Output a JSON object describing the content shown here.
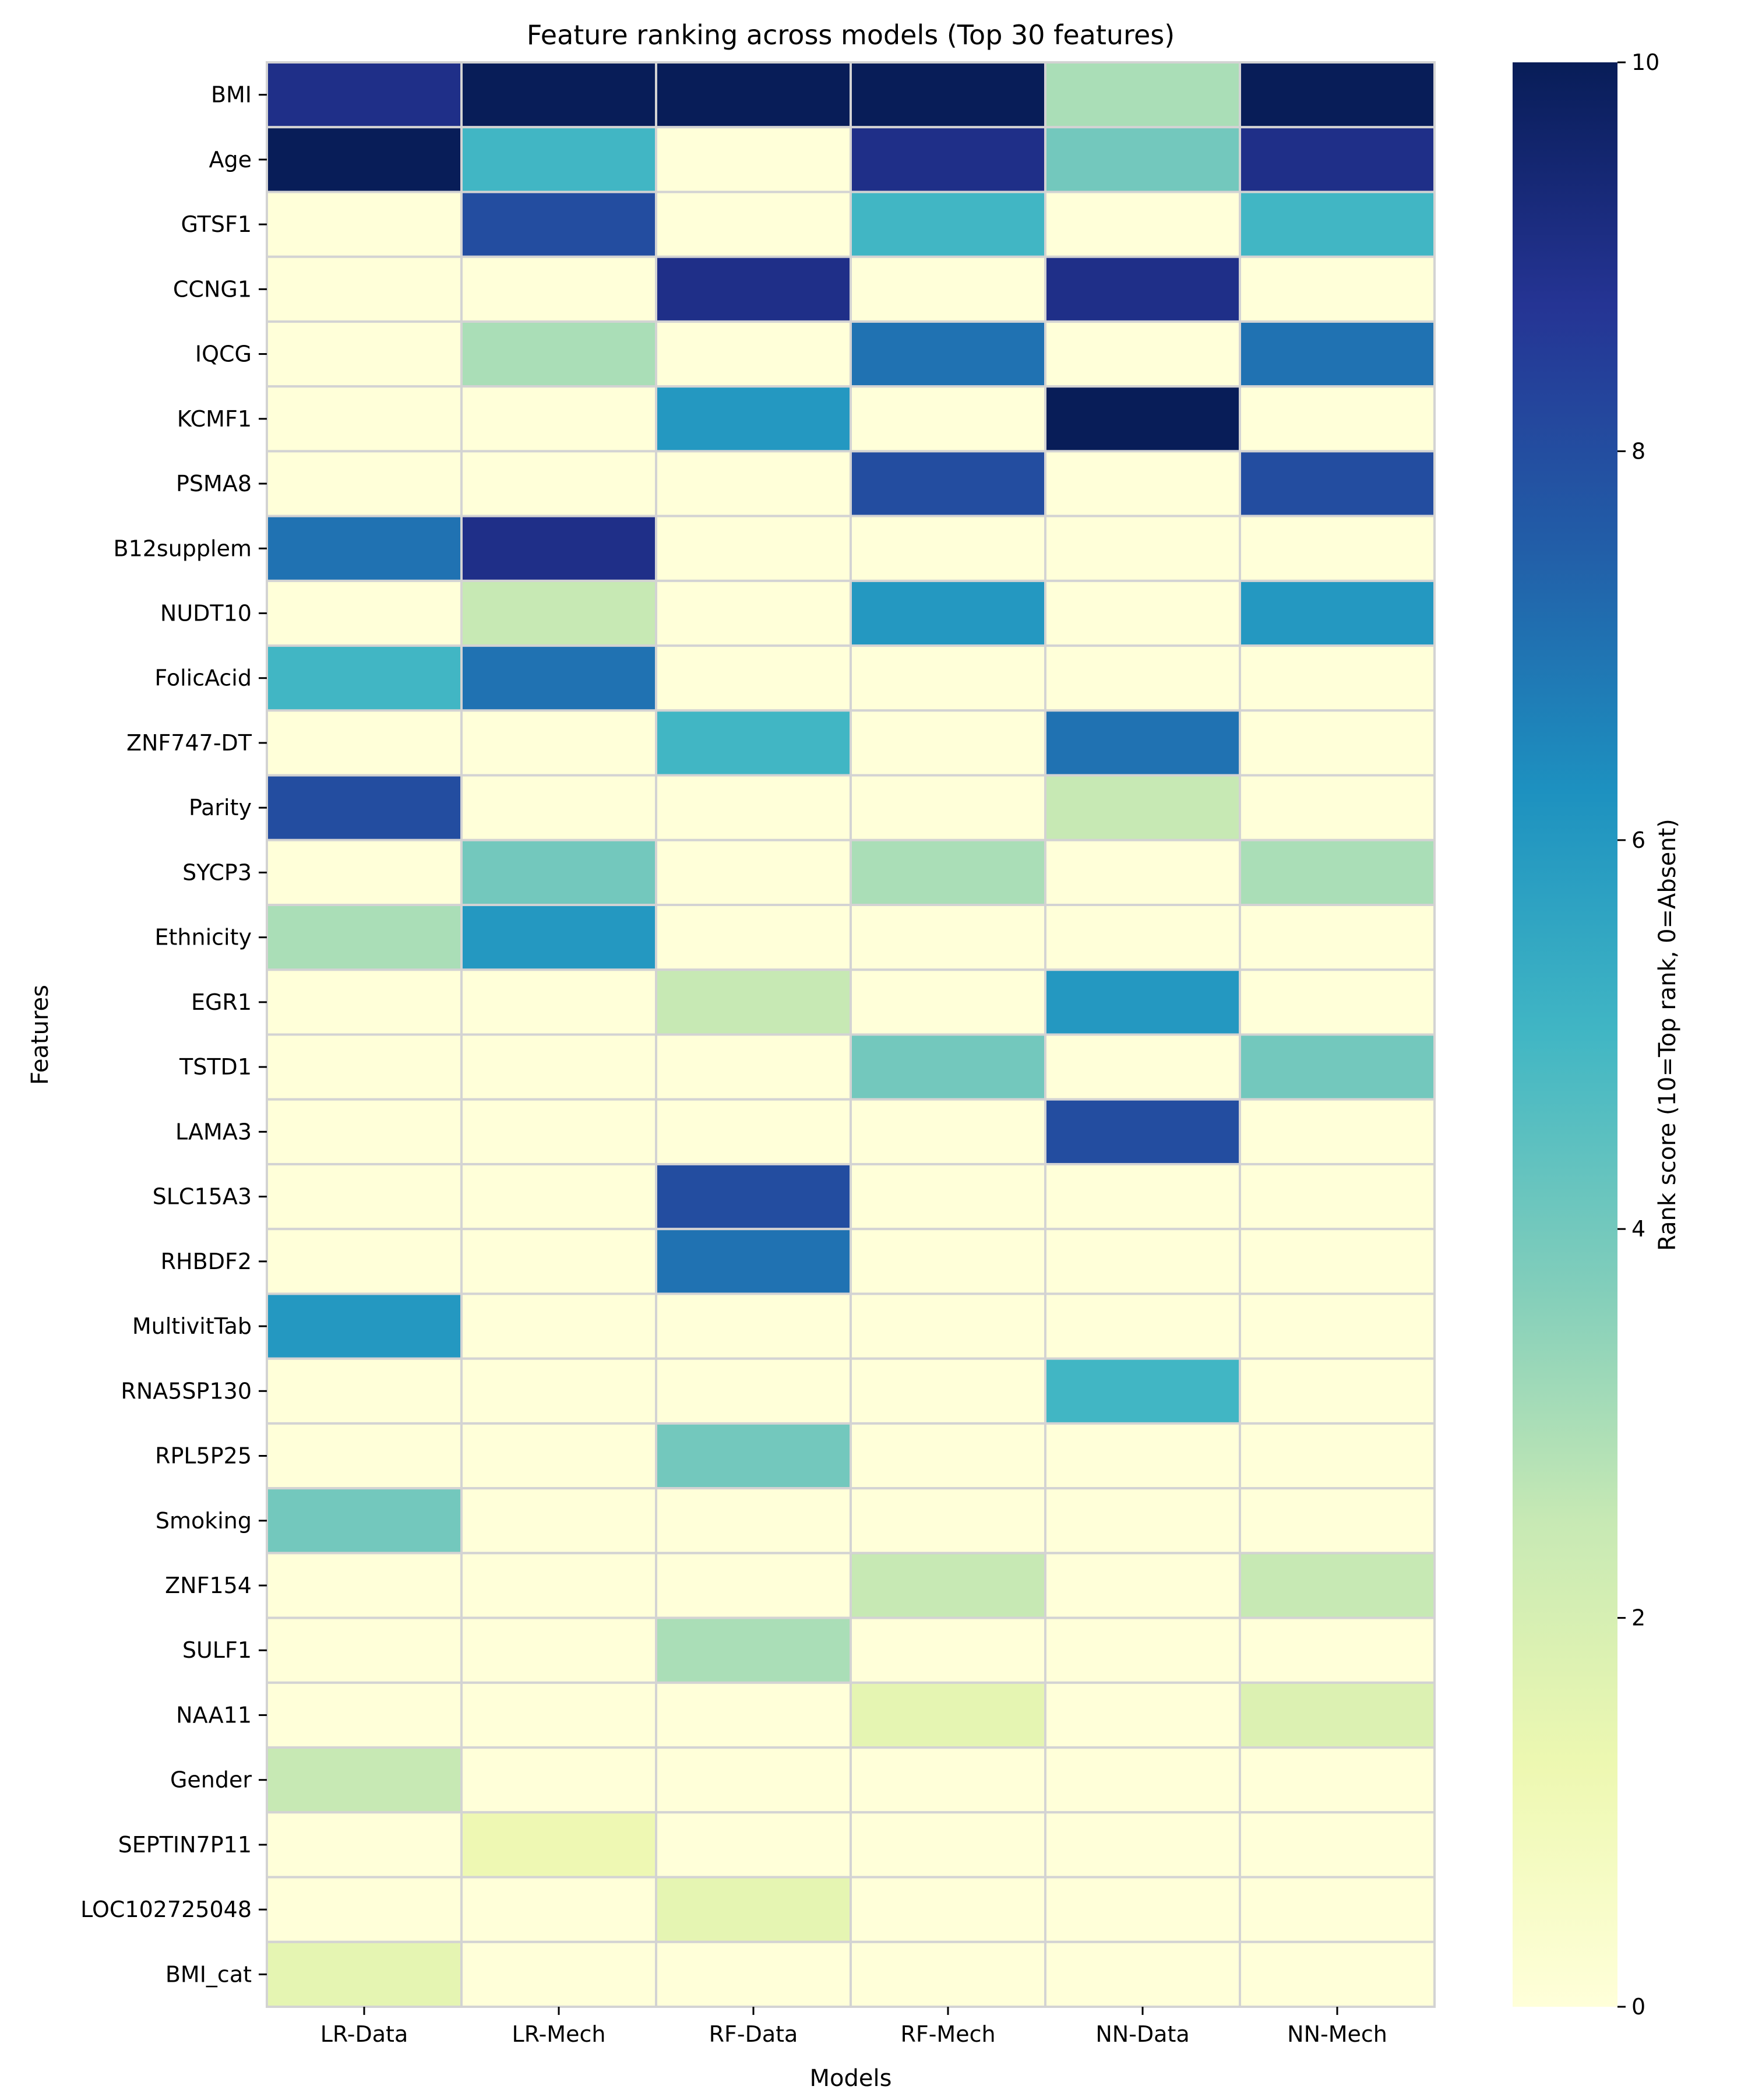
{
  "chart_data": {
    "type": "heatmap",
    "title": "Feature ranking across models (Top 30 features)",
    "xlabel": "Models",
    "ylabel": "Features",
    "colorbar_label": "Rank score (10=Top rank, 0=Absent)",
    "colorbar_ticks": [
      "0",
      "2",
      "4",
      "6",
      "8",
      "10"
    ],
    "vmin": 0,
    "vmax": 10,
    "colormap": "YlGnBu",
    "cell_edge_color": "#d3d3d3",
    "x_categories": [
      "LR-Data",
      "LR-Mech",
      "RF-Data",
      "RF-Mech",
      "NN-Data",
      "NN-Mech"
    ],
    "y_categories": [
      "BMI",
      "Age",
      "GTSF1",
      "CCNG1",
      "IQCG",
      "KCMF1",
      "PSMA8",
      "B12supplem",
      "NUDT10",
      "FolicAcid",
      "ZNF747-DT",
      "Parity",
      "SYCP3",
      "Ethnicity",
      "EGR1",
      "TSTD1",
      "LAMA3",
      "SLC15A3",
      "RHBDF2",
      "MultivitTab",
      "RNA5SP130",
      "RPL5P25",
      "Smoking",
      "ZNF154",
      "SULF1",
      "NAA11",
      "Gender",
      "SEPTIN7P11",
      "LOC102725048",
      "BMI_cat"
    ],
    "values": [
      [
        9,
        10,
        10,
        10,
        3,
        10
      ],
      [
        10,
        5,
        0,
        9,
        4,
        9
      ],
      [
        0,
        8,
        0,
        5,
        0,
        5
      ],
      [
        0,
        0,
        9,
        0,
        9,
        0
      ],
      [
        0,
        3,
        0,
        7,
        0,
        7
      ],
      [
        0,
        0,
        6,
        0,
        10,
        0
      ],
      [
        0,
        0,
        0,
        8,
        0,
        8
      ],
      [
        7,
        9,
        0,
        0,
        0,
        0
      ],
      [
        0,
        2.5,
        0,
        6,
        0,
        6
      ],
      [
        5,
        7,
        0,
        0,
        0,
        0
      ],
      [
        0,
        0,
        5,
        0,
        7,
        0
      ],
      [
        8,
        0,
        0,
        0,
        2.5,
        0
      ],
      [
        0,
        4,
        0,
        3,
        0,
        3
      ],
      [
        3,
        6,
        0,
        0,
        0,
        0
      ],
      [
        0,
        0,
        2.5,
        0,
        6,
        0
      ],
      [
        0,
        0,
        0,
        4,
        0,
        4
      ],
      [
        0,
        0,
        0,
        0,
        8,
        0
      ],
      [
        0,
        0,
        8,
        0,
        0,
        0
      ],
      [
        0,
        0,
        7,
        0,
        0,
        0
      ],
      [
        6,
        0,
        0,
        0,
        0,
        0
      ],
      [
        0,
        0,
        0,
        0,
        5,
        0
      ],
      [
        0,
        0,
        4,
        0,
        0,
        0
      ],
      [
        4,
        0,
        0,
        0,
        0,
        0
      ],
      [
        0,
        0,
        0,
        2.5,
        0,
        2.5
      ],
      [
        0,
        0,
        3,
        0,
        0,
        0
      ],
      [
        0,
        0,
        0,
        1.5,
        0,
        1.8
      ],
      [
        2.5,
        0,
        0,
        0,
        0,
        0
      ],
      [
        0,
        1.2,
        0,
        0,
        0,
        0
      ],
      [
        0,
        0,
        1.5,
        0,
        0,
        0
      ],
      [
        1.5,
        0,
        0,
        0,
        0,
        0
      ]
    ]
  }
}
